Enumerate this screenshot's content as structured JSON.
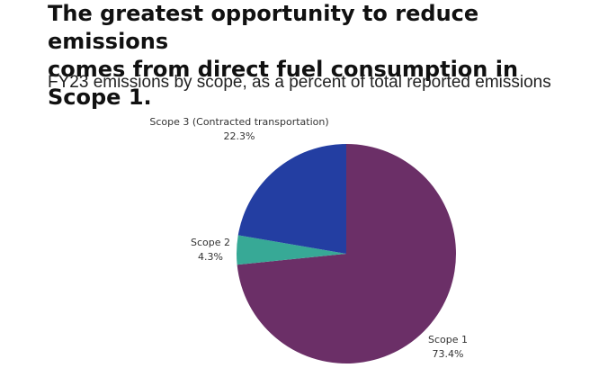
{
  "header": {
    "title": "The greatest opportunity to reduce emissions\ncomes from direct fuel consumption in Scope 1.",
    "subtitle": "FY23 emissions by scope, as a percent of total reported emissions"
  },
  "chart_data": {
    "type": "pie",
    "slices": [
      {
        "name": "Scope 1",
        "value": 73.4,
        "label": "73.4%",
        "color": "#6b2f67"
      },
      {
        "name": "Scope 2",
        "value": 4.3,
        "label": "4.3%",
        "color": "#37a996"
      },
      {
        "name": "Scope 3 (Contracted transportation)",
        "value": 22.3,
        "label": "22.3%",
        "color": "#233ea2"
      }
    ],
    "start": "12 o'clock",
    "direction": "clockwise"
  }
}
